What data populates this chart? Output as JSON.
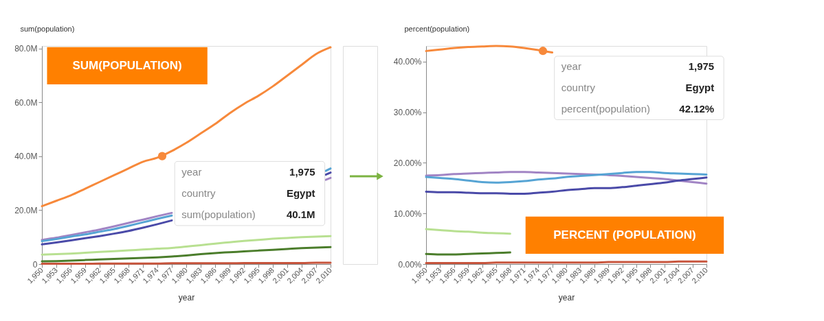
{
  "chart_data": [
    {
      "type": "line",
      "ylabel": "sum(population)",
      "xlabel": "year",
      "grid": false,
      "legend": false,
      "x": [
        1950,
        1953,
        1956,
        1959,
        1962,
        1965,
        1968,
        1971,
        1974,
        1977,
        1980,
        1983,
        1986,
        1989,
        1992,
        1995,
        1998,
        2001,
        2004,
        2007,
        2010
      ],
      "xlim": [
        1950,
        2010
      ],
      "xticks": [
        {
          "value": 1950,
          "label": "1,950"
        },
        {
          "value": 1953,
          "label": "1,953"
        },
        {
          "value": 1956,
          "label": "1,956"
        },
        {
          "value": 1959,
          "label": "1,959"
        },
        {
          "value": 1962,
          "label": "1,962"
        },
        {
          "value": 1965,
          "label": "1,965"
        },
        {
          "value": 1968,
          "label": "1,968"
        },
        {
          "value": 1971,
          "label": "1,971"
        },
        {
          "value": 1974,
          "label": "1,974"
        },
        {
          "value": 1977,
          "label": "1,977"
        },
        {
          "value": 1980,
          "label": "1,980"
        },
        {
          "value": 1983,
          "label": "1,983"
        },
        {
          "value": 1986,
          "label": "1,986"
        },
        {
          "value": 1989,
          "label": "1,989"
        },
        {
          "value": 1992,
          "label": "1,992"
        },
        {
          "value": 1995,
          "label": "1,995"
        },
        {
          "value": 1998,
          "label": "1,998"
        },
        {
          "value": 2001,
          "label": "2,001"
        },
        {
          "value": 2004,
          "label": "2,004"
        },
        {
          "value": 2007,
          "label": "2,007"
        },
        {
          "value": 2010,
          "label": "2,010"
        }
      ],
      "ylim": [
        0,
        81
      ],
      "yticks": [
        0,
        {
          "value": 20,
          "label": "20.0M"
        },
        {
          "value": 40,
          "label": "40.0M"
        },
        {
          "value": 60,
          "label": "60.0M"
        },
        {
          "value": 80,
          "label": "80.0M"
        }
      ],
      "series": [
        {
          "color": "#c8553d",
          "values": [
            0.1,
            0.1,
            0.1,
            0.1,
            0.2,
            0.2,
            0.2,
            0.2,
            0.2,
            0.3,
            0.3,
            0.3,
            0.3,
            0.3,
            0.4,
            0.4,
            0.4,
            0.4,
            0.4,
            0.5,
            0.5
          ]
        },
        {
          "color": "#4b7d2b",
          "values": [
            1.0,
            1.1,
            1.3,
            1.5,
            1.7,
            1.9,
            2.1,
            2.3,
            2.5,
            2.8,
            3.2,
            3.7,
            4.1,
            4.4,
            4.7,
            5.0,
            5.3,
            5.6,
            5.9,
            6.1,
            6.3
          ]
        },
        {
          "color": "#b8e091",
          "values": [
            3.5,
            3.7,
            3.9,
            4.2,
            4.5,
            4.8,
            5.1,
            5.4,
            5.7,
            6.0,
            6.5,
            7.0,
            7.6,
            8.1,
            8.6,
            9.0,
            9.4,
            9.7,
            10.0,
            10.2,
            10.4
          ]
        },
        {
          "color": "#a184c4",
          "x": [
            1950,
            1953,
            1956,
            1959,
            1962,
            1965,
            1968,
            1971,
            1974,
            1977,
            1980,
            1983,
            1986,
            1989,
            1992,
            1995,
            1998,
            2001,
            2004,
            2007,
            2009,
            2010
          ],
          "values": [
            9.0,
            9.8,
            10.8,
            11.8,
            12.8,
            14.0,
            15.3,
            16.5,
            17.8,
            19.0,
            null,
            null,
            null,
            null,
            null,
            null,
            null,
            null,
            null,
            null,
            31.3,
            32.0
          ]
        },
        {
          "color": "#56a4d4",
          "x": [
            1950,
            1953,
            1956,
            1959,
            1962,
            1965,
            1968,
            1971,
            1974,
            1977,
            1980,
            1983,
            1986,
            1989,
            1992,
            1995,
            1998,
            2001,
            2004,
            2007,
            2009,
            2010
          ],
          "values": [
            8.5,
            9.3,
            10.2,
            11.0,
            12.0,
            13.0,
            14.2,
            15.5,
            16.8,
            18.0,
            null,
            null,
            null,
            null,
            null,
            null,
            null,
            null,
            null,
            null,
            34.6,
            35.5
          ]
        },
        {
          "color": "#4a4aa8",
          "x": [
            1950,
            1953,
            1956,
            1959,
            1962,
            1965,
            1968,
            1971,
            1974,
            1977,
            1980,
            1983,
            1986,
            1989,
            1992,
            1995,
            1998,
            2001,
            2004,
            2007,
            2009,
            2010
          ],
          "values": [
            7.3,
            8.0,
            8.8,
            9.6,
            10.4,
            11.3,
            12.3,
            13.5,
            14.8,
            16.2,
            null,
            null,
            null,
            null,
            null,
            null,
            null,
            null,
            null,
            null,
            33.2,
            34.0
          ]
        },
        {
          "color": "#f7893b",
          "values": [
            21.5,
            23.5,
            25.5,
            28.0,
            30.5,
            33.0,
            35.5,
            38.0,
            39.5,
            42.0,
            45.0,
            48.5,
            52.0,
            56.0,
            59.5,
            62.5,
            66.0,
            70.0,
            74.0,
            78.0,
            80.5
          ]
        },
        {
          "type": "scatter",
          "marker": "circle",
          "color": "#f7893b",
          "x": [
            1975
          ],
          "values": [
            40.1
          ]
        }
      ],
      "annotations": [
        "SUM(POPULATION)",
        "year",
        "1,975",
        "country",
        "Egypt",
        "sum(population)",
        "40.1M"
      ]
    },
    {
      "type": "line",
      "ylabel": "percent(population)",
      "xlabel": "year",
      "grid": false,
      "legend": false,
      "x": [
        1950,
        1953,
        1956,
        1959,
        1962,
        1965,
        1968,
        1971,
        1974,
        1977,
        1980,
        1983,
        1986,
        1989,
        1992,
        1995,
        1998,
        2001,
        2004,
        2007,
        2010
      ],
      "xlim": [
        1950,
        2010
      ],
      "xticks": [
        {
          "value": 1950,
          "label": "1,950"
        },
        {
          "value": 1953,
          "label": "1,953"
        },
        {
          "value": 1956,
          "label": "1,956"
        },
        {
          "value": 1959,
          "label": "1,959"
        },
        {
          "value": 1962,
          "label": "1,962"
        },
        {
          "value": 1965,
          "label": "1,965"
        },
        {
          "value": 1968,
          "label": "1,968"
        },
        {
          "value": 1971,
          "label": "1,971"
        },
        {
          "value": 1974,
          "label": "1,974"
        },
        {
          "value": 1977,
          "label": "1,977"
        },
        {
          "value": 1980,
          "label": "1,980"
        },
        {
          "value": 1983,
          "label": "1,983"
        },
        {
          "value": 1986,
          "label": "1,986"
        },
        {
          "value": 1989,
          "label": "1,989"
        },
        {
          "value": 1992,
          "label": "1,992"
        },
        {
          "value": 1995,
          "label": "1,995"
        },
        {
          "value": 1998,
          "label": "1,998"
        },
        {
          "value": 2001,
          "label": "2,001"
        },
        {
          "value": 2004,
          "label": "2,004"
        },
        {
          "value": 2007,
          "label": "2,007"
        },
        {
          "value": 2010,
          "label": "2,010"
        }
      ],
      "ylim": [
        0,
        43.1
      ],
      "yticks": [
        {
          "value": 0,
          "label": "0.00%"
        },
        {
          "value": 10,
          "label": "10.00%"
        },
        {
          "value": 20,
          "label": "20.00%"
        },
        {
          "value": 30,
          "label": "30.00%"
        },
        {
          "value": 40,
          "label": "40.00%"
        }
      ],
      "series": [
        {
          "color": "#c8553d",
          "values": [
            0.2,
            0.2,
            0.2,
            0.2,
            0.2,
            0.3,
            0.3,
            0.3,
            0.3,
            0.3,
            0.3,
            0.3,
            0.3,
            0.4,
            0.4,
            0.4,
            0.4,
            0.4,
            0.5,
            0.5,
            0.5
          ]
        },
        {
          "color": "#4b7d2b",
          "values": [
            2.0,
            1.9,
            1.9,
            2.0,
            2.1,
            2.2,
            2.3,
            null,
            null,
            null,
            null,
            null,
            null,
            null,
            null,
            null,
            null,
            null,
            null,
            null,
            null
          ]
        },
        {
          "color": "#b8e091",
          "values": [
            6.9,
            6.7,
            6.5,
            6.4,
            6.2,
            6.1,
            6.0,
            null,
            null,
            null,
            null,
            null,
            null,
            null,
            null,
            null,
            null,
            null,
            null,
            null,
            null
          ]
        },
        {
          "color": "#a184c4",
          "values": [
            17.5,
            17.6,
            17.8,
            17.9,
            18.0,
            18.1,
            18.2,
            18.2,
            18.1,
            18.0,
            17.9,
            17.8,
            17.7,
            17.6,
            17.4,
            17.2,
            17.0,
            16.8,
            16.5,
            16.2,
            15.9
          ]
        },
        {
          "color": "#56a4d4",
          "values": [
            17.2,
            17.0,
            16.8,
            16.5,
            16.2,
            16.1,
            16.2,
            16.4,
            16.7,
            16.9,
            17.2,
            17.4,
            17.6,
            17.8,
            18.0,
            18.2,
            18.2,
            18.0,
            17.9,
            17.8,
            17.7
          ]
        },
        {
          "color": "#4a4aa8",
          "values": [
            14.3,
            14.2,
            14.2,
            14.1,
            14.0,
            14.0,
            13.9,
            13.9,
            14.1,
            14.3,
            14.6,
            14.8,
            15.0,
            15.0,
            15.2,
            15.5,
            15.8,
            16.1,
            16.5,
            16.8,
            17.1
          ]
        },
        {
          "color": "#f7893b",
          "values": [
            42.1,
            42.4,
            42.7,
            42.9,
            43.0,
            43.1,
            43.0,
            42.7,
            42.3,
            41.8,
            null,
            null,
            null,
            null,
            null,
            null,
            null,
            null,
            null,
            null,
            null
          ]
        },
        {
          "type": "scatter",
          "marker": "circle",
          "color": "#f7893b",
          "x": [
            1975
          ],
          "values": [
            42.12
          ]
        }
      ],
      "annotations": [
        "PERCENT (POPULATION)",
        "year",
        "1,975",
        "country",
        "Egypt",
        "percent(population)",
        "42.12%"
      ]
    }
  ]
}
